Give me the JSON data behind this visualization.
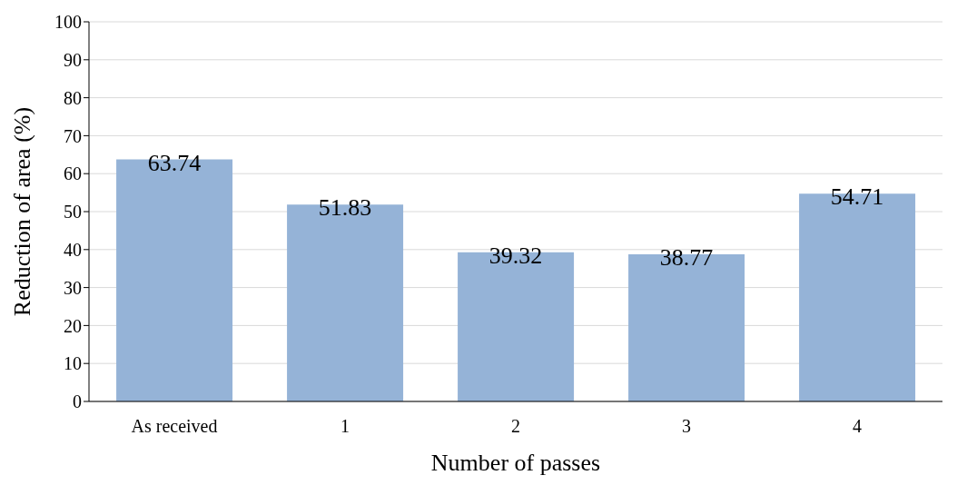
{
  "chart_data": {
    "type": "bar",
    "xlabel": "Number of passes",
    "ylabel": "Reduction of area (%)",
    "categories": [
      "As received",
      "1",
      "2",
      "3",
      "4"
    ],
    "values": [
      63.74,
      51.83,
      39.32,
      38.77,
      54.71
    ],
    "color": "#95b3d7",
    "ylim": [
      0,
      100
    ],
    "yticks": [
      0,
      10,
      20,
      30,
      40,
      50,
      60,
      70,
      80,
      90,
      100
    ],
    "grid": "y",
    "data_labels": true
  }
}
